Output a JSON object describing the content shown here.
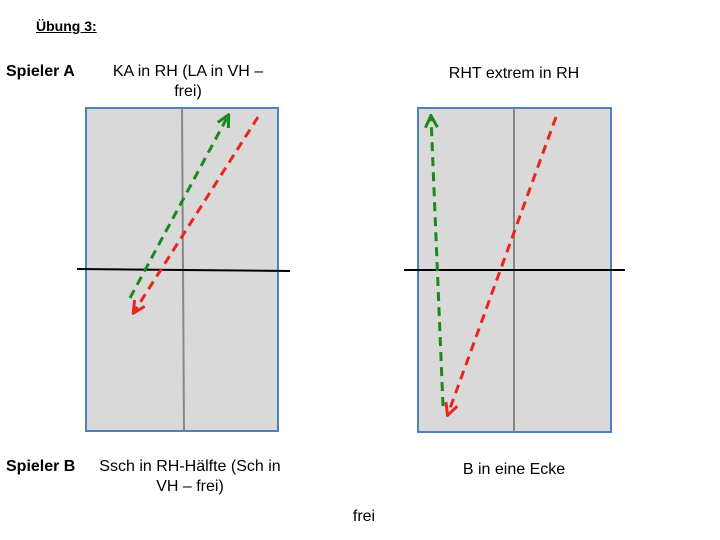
{
  "header": {
    "title": "Übung 3:"
  },
  "player_a": {
    "label": "Spieler A",
    "left_task": "KA in RH (LA in VH – frei)",
    "right_task": "RHT extrem in RH"
  },
  "player_b": {
    "label": "Spieler B",
    "left_task": "Ssch in RH-Hälfte (Sch in VH – frei)",
    "right_task": "B in eine Ecke"
  },
  "footer": {
    "note": "frei"
  }
}
